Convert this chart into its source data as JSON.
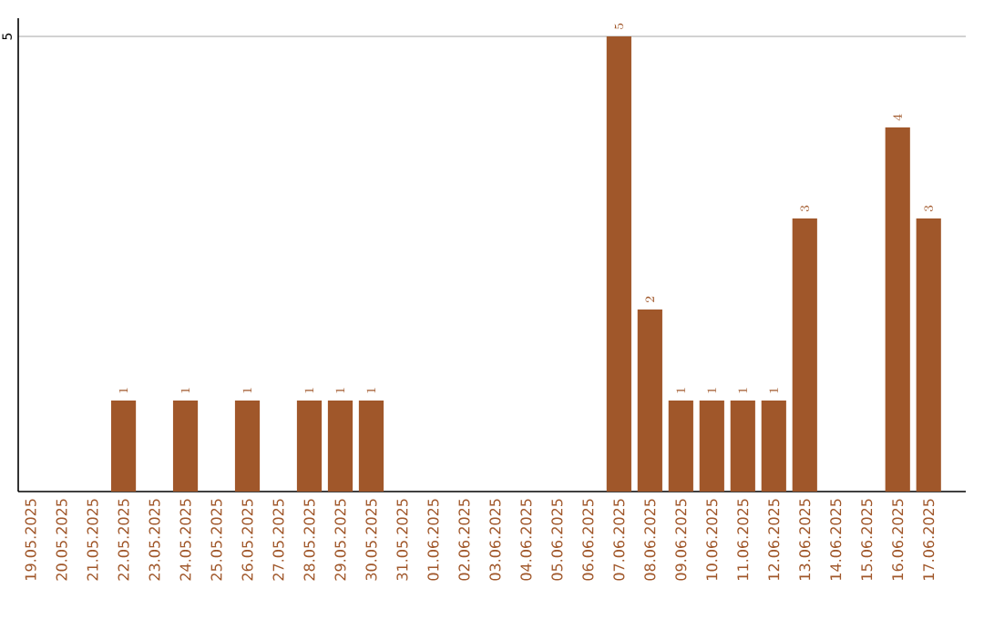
{
  "chart_data": {
    "type": "bar",
    "categories": [
      "19.05.2025",
      "20.05.2025",
      "21.05.2025",
      "22.05.2025",
      "23.05.2025",
      "24.05.2025",
      "25.05.2025",
      "26.05.2025",
      "27.05.2025",
      "28.05.2025",
      "29.05.2025",
      "30.05.2025",
      "31.05.2025",
      "01.06.2025",
      "02.06.2025",
      "03.06.2025",
      "04.06.2025",
      "05.06.2025",
      "06.06.2025",
      "07.06.2025",
      "08.06.2025",
      "09.06.2025",
      "10.06.2025",
      "11.06.2025",
      "12.06.2025",
      "13.06.2025",
      "14.06.2025",
      "15.06.2025",
      "16.06.2025",
      "17.06.2025"
    ],
    "values": [
      null,
      null,
      null,
      1,
      null,
      1,
      null,
      1,
      null,
      1,
      1,
      1,
      null,
      null,
      null,
      null,
      null,
      null,
      null,
      5,
      2,
      1,
      1,
      1,
      1,
      3,
      null,
      null,
      4,
      3
    ],
    "color": "#a0572a",
    "ylim": [
      0,
      5.2
    ],
    "yticks": [
      5
    ],
    "grid": "y",
    "data_labels": true
  }
}
